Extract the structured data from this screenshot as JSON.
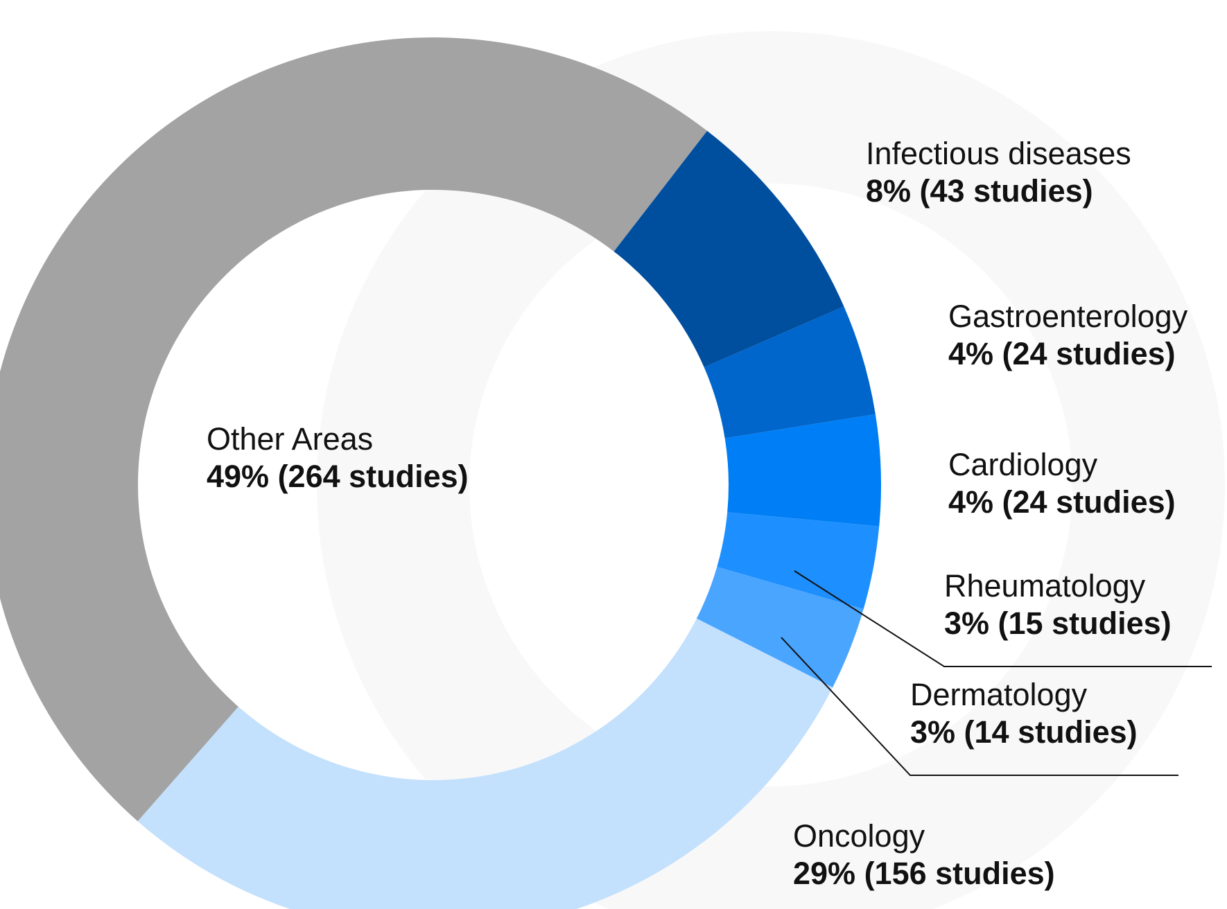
{
  "chart_data": {
    "type": "donut",
    "categories": [
      "Infectious diseases",
      "Gastroenterology",
      "Cardiology",
      "Rheumatology",
      "Dermatology",
      "Oncology",
      "Other Areas"
    ],
    "values": [
      8,
      4,
      4,
      3,
      3,
      29,
      49
    ],
    "value_labels": [
      "8%  (43 studies)",
      "4%  (24 studies)",
      "4%  (24 studies)",
      "3%  (15 studies)",
      "3%  (14 studies)",
      "29%  (156 studies)",
      "49% (264 studies)"
    ],
    "colors": [
      "#004f9f",
      "#0066cc",
      "#007ef5",
      "#1e8ffe",
      "#4aa5ff",
      "#c3e0fd",
      "#a3a3a3"
    ]
  }
}
